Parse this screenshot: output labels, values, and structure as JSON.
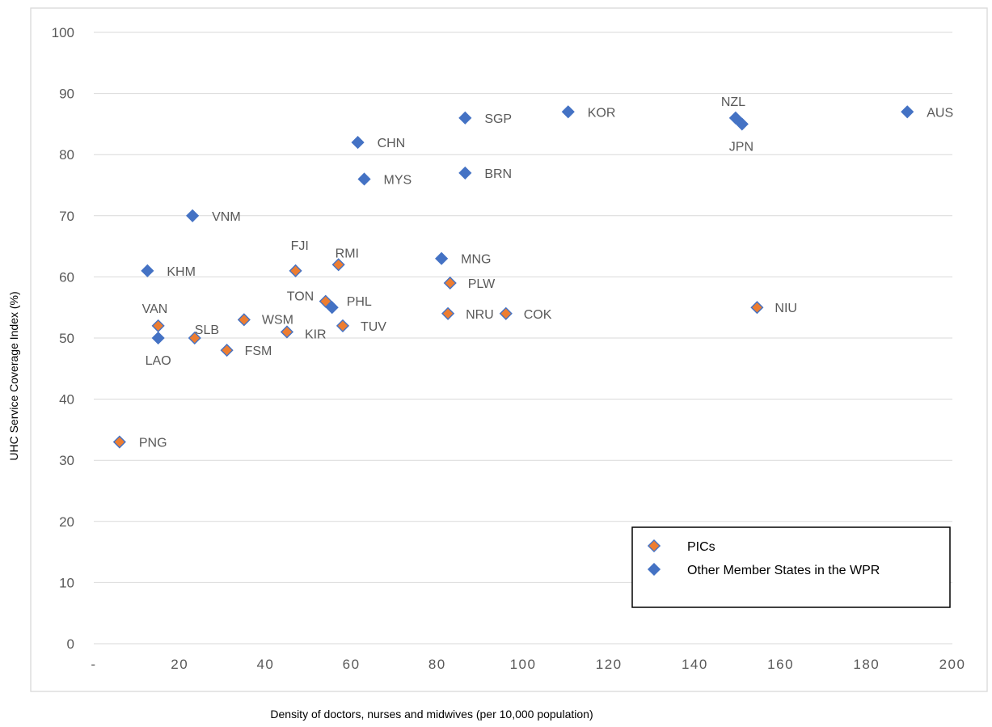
{
  "chart_data": {
    "type": "scatter",
    "xlabel": "Density of doctors, nurses and midwives (per 10,000 population)",
    "ylabel": "UHC Service Coverage Index (%)",
    "xlim": [
      0,
      200
    ],
    "ylim": [
      0,
      100
    ],
    "x_ticks": [
      "-",
      "20",
      "40",
      "60",
      "80",
      "100",
      "120",
      "140",
      "160",
      "180",
      "200"
    ],
    "y_ticks": [
      "0",
      "10",
      "20",
      "30",
      "40",
      "50",
      "60",
      "70",
      "80",
      "90",
      "100"
    ],
    "grid": "horizontal",
    "legend_position": "bottom-right",
    "colors": {
      "pics_fill": "#ED7D31",
      "pics_edge": "#4472C4",
      "other_fill": "#4472C4"
    },
    "series": [
      {
        "name": "PICs",
        "points": [
          {
            "label": "PNG",
            "x": 6,
            "y": 33
          },
          {
            "label": "VAN",
            "x": 15,
            "y": 52
          },
          {
            "label": "SLB",
            "x": 23.5,
            "y": 50
          },
          {
            "label": "FSM",
            "x": 31,
            "y": 48
          },
          {
            "label": "WSM",
            "x": 35,
            "y": 53
          },
          {
            "label": "KIR",
            "x": 45,
            "y": 51
          },
          {
            "label": "FJI",
            "x": 47,
            "y": 61
          },
          {
            "label": "TON",
            "x": 54,
            "y": 56
          },
          {
            "label": "RMI",
            "x": 57,
            "y": 62
          },
          {
            "label": "TUV",
            "x": 58,
            "y": 52
          },
          {
            "label": "NRU",
            "x": 82.5,
            "y": 54
          },
          {
            "label": "PLW",
            "x": 83,
            "y": 59
          },
          {
            "label": "COK",
            "x": 96,
            "y": 54
          },
          {
            "label": "NIU",
            "x": 154.5,
            "y": 55
          }
        ]
      },
      {
        "name": "Other Member States in the WPR",
        "points": [
          {
            "label": "KHM",
            "x": 12.5,
            "y": 61
          },
          {
            "label": "LAO",
            "x": 15,
            "y": 50
          },
          {
            "label": "VNM",
            "x": 23,
            "y": 70
          },
          {
            "label": "PHL",
            "x": 55.5,
            "y": 55
          },
          {
            "label": "CHN",
            "x": 61.5,
            "y": 82
          },
          {
            "label": "MYS",
            "x": 63,
            "y": 76
          },
          {
            "label": "MNG",
            "x": 81,
            "y": 63
          },
          {
            "label": "BRN",
            "x": 86.5,
            "y": 77
          },
          {
            "label": "SGP",
            "x": 86.5,
            "y": 86
          },
          {
            "label": "KOR",
            "x": 110.5,
            "y": 87
          },
          {
            "label": "NZL",
            "x": 149.5,
            "y": 86
          },
          {
            "label": "JPN",
            "x": 151,
            "y": 85
          },
          {
            "label": "AUS",
            "x": 189.5,
            "y": 87
          }
        ]
      }
    ]
  }
}
